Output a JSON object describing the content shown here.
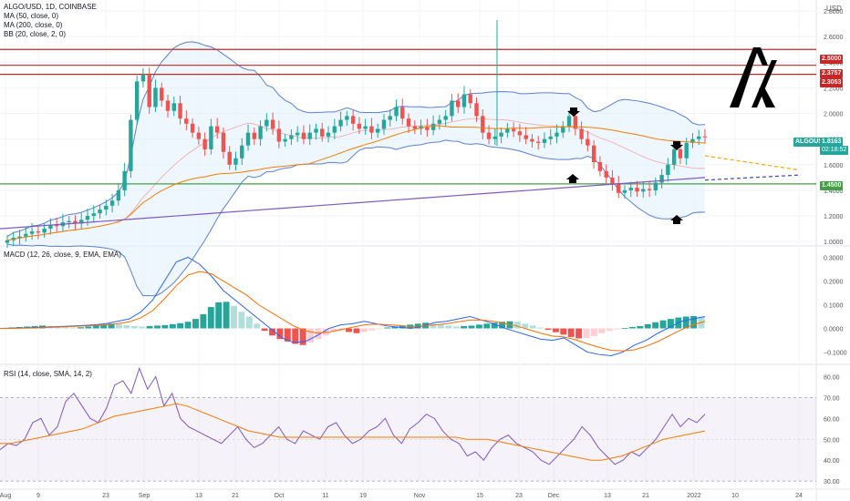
{
  "chart_data": {
    "type": "candlestick",
    "symbol": "ALGO/USD, 1D, COINBASE",
    "currency": "USD",
    "ticker_tag": "ALGOUSD",
    "last_price": "1.8163",
    "countdown": "02:18:52",
    "indicator_labels": [
      "MA (50, close, 0)",
      "MA (200, close, 0)",
      "BB (20, close, 2, 0)"
    ],
    "price_axis": {
      "ticks": [
        "2.8000",
        "2.6000",
        "2.4000",
        "2.2000",
        "2.0000",
        "1.8000",
        "1.6000",
        "1.4000",
        "1.2000",
        "1.0000"
      ],
      "range": [
        0.98,
        2.85
      ]
    },
    "levels": [
      {
        "value": 2.5,
        "label": "2.5000",
        "color": "#c62828"
      },
      {
        "value": 2.3757,
        "label": "2.3757",
        "color": "#c62828"
      },
      {
        "value": 2.3053,
        "label": "2.3053",
        "color": "#c62828"
      },
      {
        "value": 1.45,
        "label": "1.4500",
        "color": "#43a047"
      }
    ],
    "x_axis_ticks": [
      "Aug",
      "9",
      "23",
      "Sep",
      "13",
      "21",
      "Oct",
      "11",
      "19",
      "Nov",
      "15",
      "23",
      "Dec",
      "13",
      "21",
      "2022",
      "10",
      "24"
    ],
    "closes": [
      1.01,
      1.03,
      1.04,
      1.06,
      1.08,
      1.07,
      1.1,
      1.13,
      1.12,
      1.15,
      1.16,
      1.14,
      1.17,
      1.2,
      1.22,
      1.25,
      1.28,
      1.32,
      1.4,
      1.55,
      1.95,
      2.25,
      2.3,
      2.05,
      2.2,
      2.1,
      2.02,
      2.08,
      1.96,
      1.92,
      1.85,
      1.8,
      1.72,
      1.9,
      1.85,
      1.7,
      1.6,
      1.65,
      1.75,
      1.85,
      1.8,
      1.9,
      1.95,
      1.88,
      1.78,
      1.8,
      1.83,
      1.85,
      1.8,
      1.85,
      1.88,
      1.82,
      1.85,
      1.9,
      1.95,
      1.98,
      1.92,
      1.88,
      1.9,
      1.85,
      1.88,
      1.95,
      1.98,
      2.05,
      1.96,
      1.9,
      1.88,
      1.9,
      1.87,
      1.92,
      1.95,
      1.98,
      2.1,
      2.05,
      2.15,
      2.08,
      1.98,
      1.85,
      1.8,
      1.82,
      1.85,
      1.88,
      1.86,
      1.83,
      1.8,
      1.78,
      1.77,
      1.8,
      1.82,
      1.85,
      1.9,
      1.98,
      1.88,
      1.8,
      1.75,
      1.62,
      1.55,
      1.5,
      1.45,
      1.38,
      1.4,
      1.42,
      1.39,
      1.41,
      1.4,
      1.46,
      1.52,
      1.6,
      1.72,
      1.65,
      1.77,
      1.8,
      1.82,
      1.8163
    ],
    "ma200": [
      1.1,
      1.12,
      1.14,
      1.16,
      1.18,
      1.2,
      1.22,
      1.24,
      1.26,
      1.28,
      1.3,
      1.32,
      1.34,
      1.36,
      1.38,
      1.4,
      1.42,
      1.44,
      1.46,
      1.48,
      1.5
    ],
    "macd": {
      "label": "MACD (12, 26, close, 9, EMA, EMA)",
      "ticks": [
        "0.3000",
        "0.2000",
        "0.1000",
        "0.0000",
        "−0.1000"
      ],
      "range": [
        -0.14,
        0.34
      ],
      "histogram": [
        0.002,
        0.004,
        0.006,
        0.008,
        0.01,
        0.012,
        0.01,
        0.008,
        0.006,
        0.004,
        0.005,
        0.008,
        0.012,
        0.016,
        0.02,
        0.018,
        0.014,
        0.01,
        0.008,
        0.01,
        0.012,
        0.014,
        0.018,
        0.022,
        0.028,
        0.04,
        0.06,
        0.09,
        0.11,
        0.112,
        0.095,
        0.07,
        0.05,
        0.02,
        -0.01,
        -0.03,
        -0.045,
        -0.055,
        -0.065,
        -0.07,
        -0.06,
        -0.045,
        -0.03,
        -0.015,
        -0.01,
        -0.015,
        -0.02,
        -0.015,
        -0.008,
        -0.002,
        0.004,
        0.008,
        0.012,
        0.016,
        0.02,
        0.024,
        0.02,
        0.016,
        0.012,
        0.008,
        0.01,
        0.012,
        0.016,
        0.02,
        0.024,
        0.028,
        0.03,
        0.028,
        0.02,
        0.012,
        0.004,
        -0.006,
        -0.016,
        -0.026,
        -0.036,
        -0.042,
        -0.04,
        -0.032,
        -0.02,
        -0.01,
        -0.004,
        0.002,
        0.006,
        0.01,
        0.018,
        0.026,
        0.034,
        0.04,
        0.046,
        0.05,
        0.052,
        0.05
      ],
      "macd_line": [
        0.0,
        0.001,
        0.002,
        0.004,
        0.006,
        0.008,
        0.01,
        0.012,
        0.015,
        0.02,
        0.03,
        0.04,
        0.07,
        0.12,
        0.2,
        0.28,
        0.3,
        0.27,
        0.22,
        0.16,
        0.12,
        0.08,
        0.04,
        0.0,
        -0.04,
        -0.06,
        -0.055,
        -0.03,
        0.0,
        0.015,
        0.02,
        0.03,
        0.02,
        0.01,
        0.005,
        0.0,
        0.01,
        0.025,
        0.03,
        0.04,
        0.05,
        0.035,
        0.02,
        0.0,
        -0.015,
        -0.03,
        -0.045,
        -0.05,
        -0.04,
        -0.07,
        -0.1,
        -0.11,
        -0.115,
        -0.1,
        -0.07,
        -0.05,
        -0.02,
        0.005,
        0.03,
        0.04,
        0.05
      ],
      "signal_line": [
        0.0,
        0.0,
        0.001,
        0.002,
        0.004,
        0.006,
        0.008,
        0.01,
        0.012,
        0.015,
        0.02,
        0.028,
        0.045,
        0.075,
        0.125,
        0.18,
        0.225,
        0.24,
        0.23,
        0.2,
        0.17,
        0.14,
        0.1,
        0.07,
        0.04,
        0.01,
        -0.01,
        -0.02,
        -0.015,
        -0.005,
        0.005,
        0.015,
        0.018,
        0.016,
        0.012,
        0.008,
        0.01,
        0.015,
        0.02,
        0.028,
        0.035,
        0.035,
        0.03,
        0.02,
        0.01,
        -0.005,
        -0.02,
        -0.032,
        -0.036,
        -0.048,
        -0.065,
        -0.08,
        -0.092,
        -0.095,
        -0.09,
        -0.075,
        -0.055,
        -0.03,
        -0.005,
        0.015,
        0.03
      ]
    },
    "rsi": {
      "label": "RSI (14, close, SMA, 14, 2)",
      "ticks": [
        "80.00",
        "70.00",
        "60.00",
        "50.00",
        "40.00",
        "30.00"
      ],
      "range": [
        27,
        85
      ],
      "band": [
        30,
        70
      ],
      "rsi_line": [
        45,
        48,
        47,
        50,
        58,
        60,
        52,
        56,
        68,
        72,
        66,
        60,
        58,
        65,
        76,
        78,
        72,
        84,
        74,
        80,
        66,
        72,
        60,
        56,
        54,
        52,
        50,
        48,
        52,
        56,
        50,
        46,
        48,
        52,
        56,
        50,
        48,
        54,
        52,
        50,
        56,
        58,
        52,
        48,
        50,
        54,
        56,
        60,
        52,
        48,
        55,
        58,
        62,
        60,
        54,
        50,
        48,
        42,
        44,
        40,
        46,
        50,
        52,
        48,
        46,
        44,
        40,
        38,
        42,
        46,
        50,
        56,
        52,
        46,
        42,
        38,
        40,
        44,
        42,
        46,
        50,
        56,
        62,
        56,
        60,
        58,
        62
      ],
      "rsi_ma": [
        48,
        48,
        49,
        50,
        51,
        52,
        53,
        54,
        55,
        57,
        59,
        61,
        62,
        63,
        64,
        65,
        66,
        67,
        66,
        64,
        62,
        60,
        58,
        56,
        54,
        53,
        52,
        51,
        51,
        51,
        51,
        51,
        51,
        51,
        51,
        51,
        51,
        51,
        51,
        51,
        51,
        51,
        51,
        51,
        51,
        50,
        50,
        50,
        49,
        48,
        47,
        46,
        45,
        44,
        43,
        42,
        41,
        40,
        40,
        41,
        42,
        44,
        46,
        48,
        50,
        51,
        52,
        53,
        54
      ]
    }
  }
}
